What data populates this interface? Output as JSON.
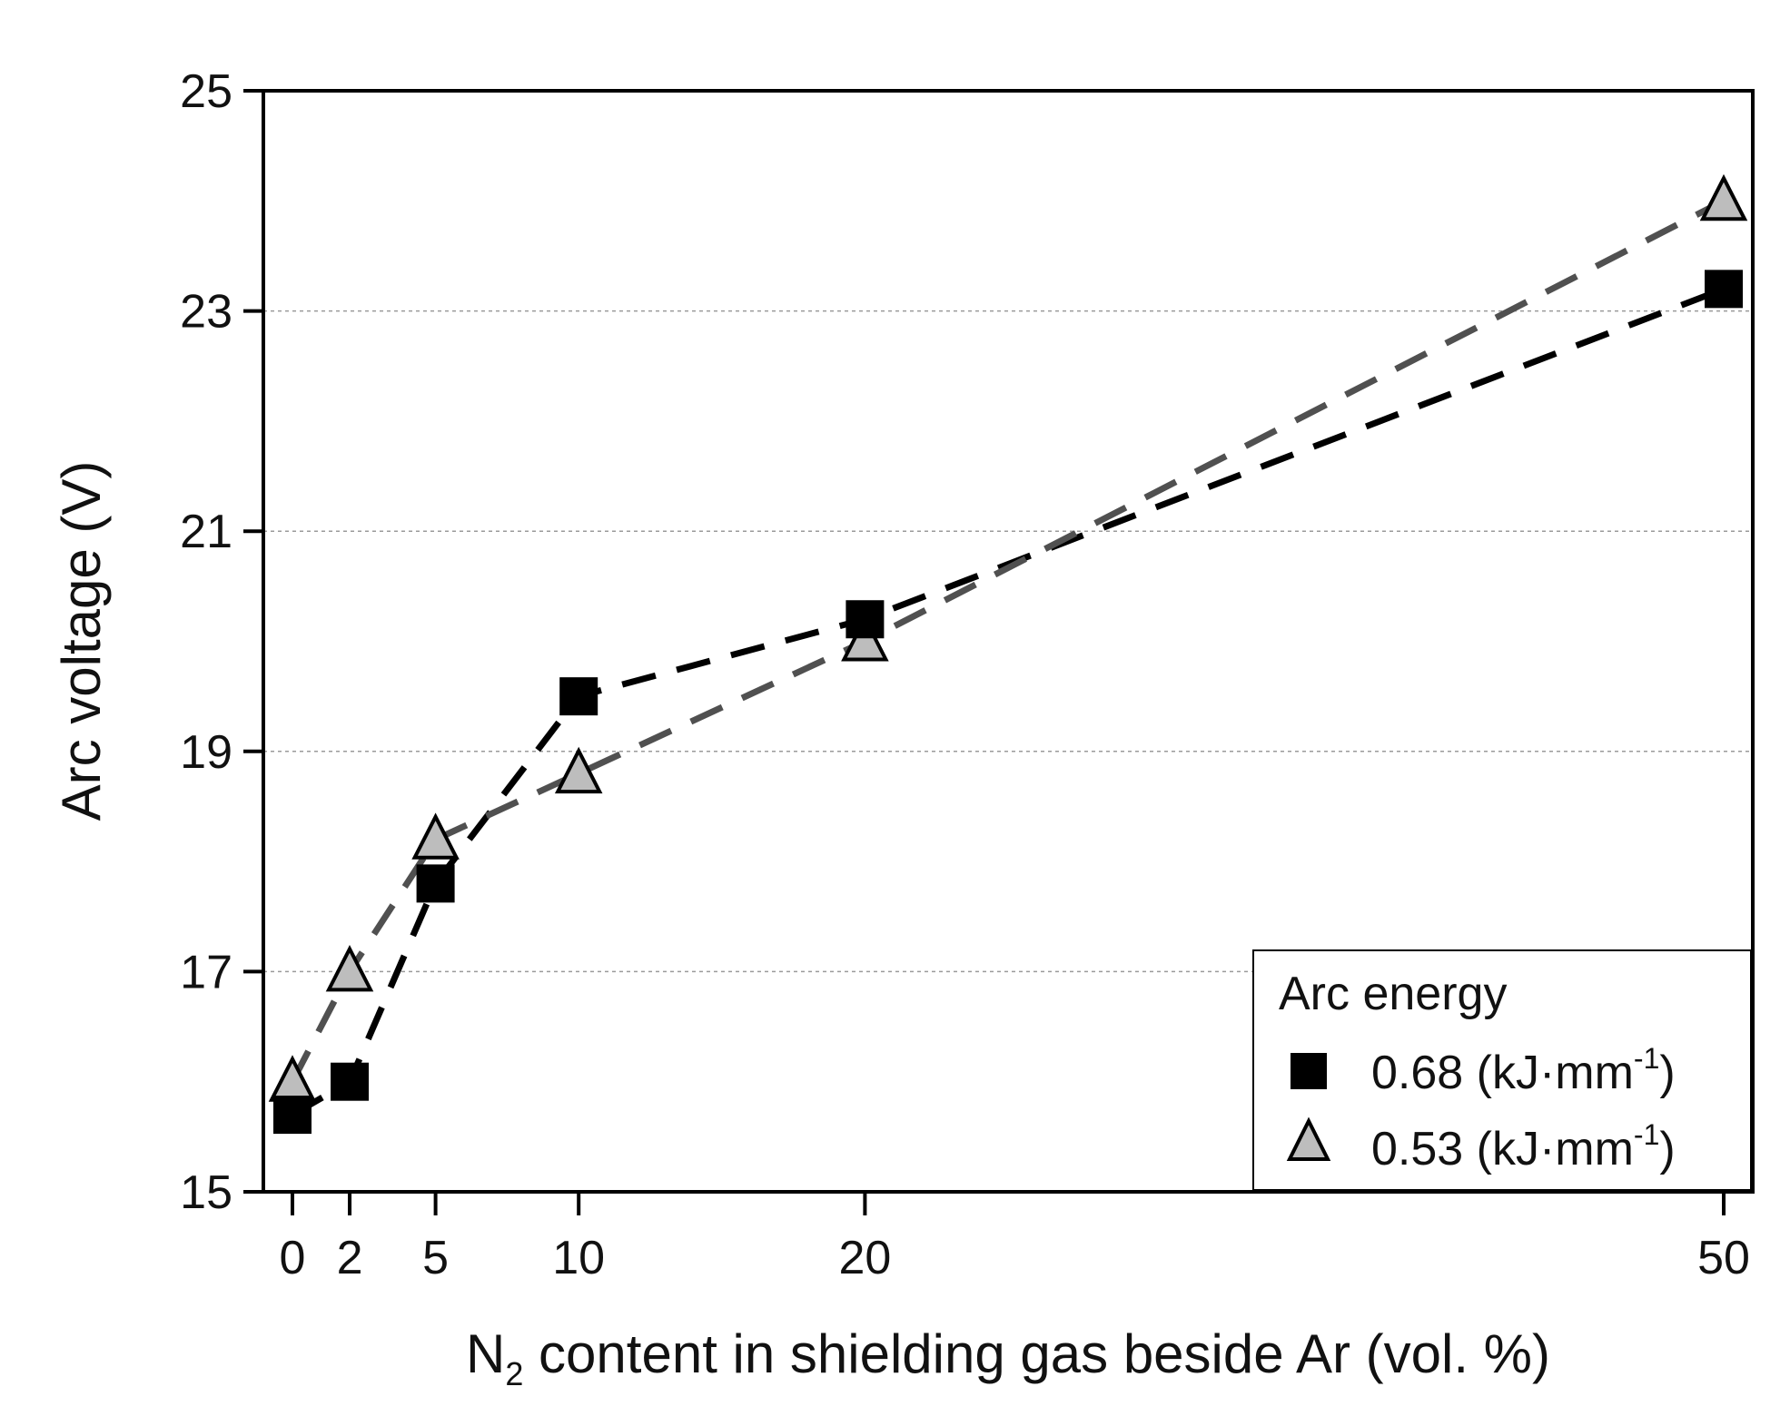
{
  "chart_data": {
    "type": "line",
    "title": "",
    "xlabel": {
      "prefix": "N",
      "subscript": "2",
      "suffix": " content in shielding gas beside Ar (vol. %)"
    },
    "ylabel": "Arc voltage (V)",
    "ylim": [
      15,
      25
    ],
    "yticks": [
      15,
      17,
      19,
      21,
      23,
      25
    ],
    "x_categories": [
      0,
      2,
      5,
      10,
      20,
      50
    ],
    "x_tick_labels": [
      "0",
      "2",
      "5",
      "10",
      "20",
      "50"
    ],
    "grid": "horizontal dotted",
    "legend": {
      "title": "Arc energy",
      "position": "bottom-right"
    },
    "series": [
      {
        "name": "0.68 (kJ·mm",
        "superscript": "-1",
        "suffix": ")",
        "marker": "square",
        "marker_color": "#000000",
        "line_color": "#000000",
        "line_style": "dashed",
        "x": [
          0,
          2,
          5,
          10,
          20,
          50
        ],
        "values": [
          15.7,
          16.0,
          17.8,
          19.5,
          20.2,
          23.2
        ]
      },
      {
        "name": "0.53 (kJ·mm",
        "superscript": "-1",
        "suffix": ")",
        "marker": "triangle",
        "marker_color": "#bdbdbd",
        "line_color": "#505050",
        "line_style": "dashed",
        "x": [
          0,
          2,
          5,
          10,
          20,
          50
        ],
        "values": [
          16.0,
          17.0,
          18.2,
          18.8,
          20.0,
          24.0
        ]
      }
    ]
  }
}
